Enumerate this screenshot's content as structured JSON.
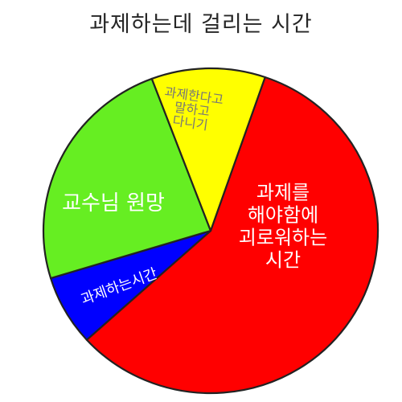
{
  "chart_data": {
    "type": "pie",
    "title": "과제하는데 걸리는 시간",
    "colors_note": "slice fill colors",
    "slices": [
      {
        "label_lines": [
          "과제를",
          "해야함에",
          "괴로워하는",
          "시간"
        ],
        "value": 58,
        "color": "#ff0000",
        "label_color": "#ffffff"
      },
      {
        "label_lines": [
          "과제하는시간"
        ],
        "value": 7,
        "color": "#0000ff",
        "label_color": "#ffffff"
      },
      {
        "label_lines": [
          "교수님 원망"
        ],
        "value": 24,
        "color": "#66ee22",
        "label_color": "#ffffff"
      },
      {
        "label_lines": [
          "과제한다고",
          "말하고",
          "다니기"
        ],
        "value": 11,
        "color": "#ffff00",
        "label_color": "#777777"
      }
    ]
  }
}
